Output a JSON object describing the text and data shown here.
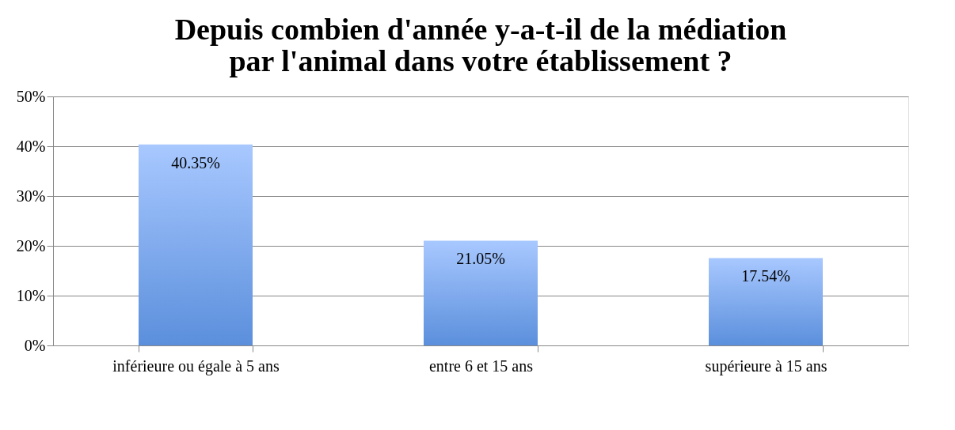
{
  "chart_data": {
    "type": "bar",
    "title": "Depuis combien d'année y-a-t-il de la médiation par l'animal dans votre établissement ?",
    "categories": [
      "inférieure ou égale à 5 ans",
      "entre 6 et 15 ans",
      "supérieure à 15 ans"
    ],
    "values": [
      40.35,
      21.05,
      17.54
    ],
    "value_labels": [
      "40.35%",
      "21.05%",
      "17.54%"
    ],
    "color": "#5b8fdc",
    "ylim": [
      0,
      50
    ],
    "yticks": [
      {
        "value": 0,
        "label": "0%"
      },
      {
        "value": 10,
        "label": "10%"
      },
      {
        "value": 20,
        "label": "20%"
      },
      {
        "value": 30,
        "label": "30%"
      },
      {
        "value": 40,
        "label": "40%"
      },
      {
        "value": 50,
        "label": "50%"
      }
    ],
    "grid": "y"
  }
}
